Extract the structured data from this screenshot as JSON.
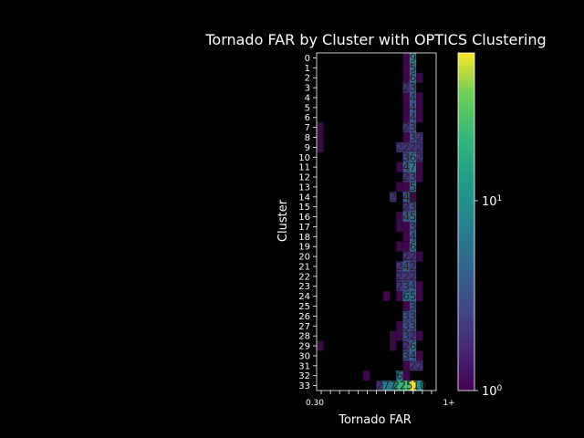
{
  "chart_data": {
    "type": "heatmap",
    "title": "Tornado FAR by Cluster with OPTICS Clustering",
    "xlabel": "Tornado FAR",
    "ylabel": "Cluster",
    "x_first_tick_label": "0.30",
    "x_last_tick_label": "1+",
    "x_tick_count": 13,
    "y_categories": [
      "0",
      "1",
      "2",
      "3",
      "4",
      "5",
      "6",
      "7",
      "8",
      "9",
      "10",
      "11",
      "12",
      "13",
      "14",
      "15",
      "16",
      "17",
      "18",
      "19",
      "20",
      "21",
      "22",
      "23",
      "24",
      "25",
      "26",
      "27",
      "28",
      "29",
      "30",
      "31",
      "32",
      "33"
    ],
    "colorbar": {
      "scale": "log",
      "colormap": "viridis",
      "min": 1,
      "max": 60,
      "tick_labels": [
        "10^0",
        "10^1"
      ],
      "tick_values": [
        1,
        10
      ]
    },
    "column_count": 18,
    "cells": [
      {
        "row": 0,
        "col": 13,
        "v": 1
      },
      {
        "row": 0,
        "col": 14,
        "v": 9
      },
      {
        "row": 1,
        "col": 13,
        "v": 1
      },
      {
        "row": 1,
        "col": 14,
        "v": 5
      },
      {
        "row": 2,
        "col": 13,
        "v": 1
      },
      {
        "row": 2,
        "col": 14,
        "v": 6
      },
      {
        "row": 2,
        "col": 15,
        "v": 1
      },
      {
        "row": 3,
        "col": 13,
        "v": 2
      },
      {
        "row": 3,
        "col": 14,
        "v": 3
      },
      {
        "row": 4,
        "col": 13,
        "v": 1
      },
      {
        "row": 4,
        "col": 14,
        "v": 4
      },
      {
        "row": 4,
        "col": 15,
        "v": 1
      },
      {
        "row": 5,
        "col": 13,
        "v": 1
      },
      {
        "row": 5,
        "col": 14,
        "v": 4
      },
      {
        "row": 5,
        "col": 15,
        "v": 1
      },
      {
        "row": 6,
        "col": 13,
        "v": 1
      },
      {
        "row": 6,
        "col": 14,
        "v": 4
      },
      {
        "row": 6,
        "col": 15,
        "v": 1
      },
      {
        "row": 7,
        "col": 0,
        "v": 1
      },
      {
        "row": 7,
        "col": 13,
        "v": 2
      },
      {
        "row": 7,
        "col": 14,
        "v": 3
      },
      {
        "row": 8,
        "col": 0,
        "v": 1
      },
      {
        "row": 8,
        "col": 13,
        "v": 1
      },
      {
        "row": 8,
        "col": 14,
        "v": 3
      },
      {
        "row": 8,
        "col": 15,
        "v": 2
      },
      {
        "row": 9,
        "col": 0,
        "v": 1
      },
      {
        "row": 9,
        "col": 12,
        "v": 2
      },
      {
        "row": 9,
        "col": 13,
        "v": 2
      },
      {
        "row": 9,
        "col": 14,
        "v": 2
      },
      {
        "row": 9,
        "col": 15,
        "v": 2
      },
      {
        "row": 10,
        "col": 13,
        "v": 3
      },
      {
        "row": 10,
        "col": 14,
        "v": 6
      },
      {
        "row": 10,
        "col": 15,
        "v": 2
      },
      {
        "row": 11,
        "col": 12,
        "v": 1
      },
      {
        "row": 11,
        "col": 13,
        "v": 4
      },
      {
        "row": 11,
        "col": 14,
        "v": 7
      },
      {
        "row": 11,
        "col": 15,
        "v": 1
      },
      {
        "row": 12,
        "col": 13,
        "v": 2
      },
      {
        "row": 12,
        "col": 14,
        "v": 3
      },
      {
        "row": 12,
        "col": 15,
        "v": 1
      },
      {
        "row": 13,
        "col": 12,
        "v": 1
      },
      {
        "row": 13,
        "col": 13,
        "v": 1
      },
      {
        "row": 13,
        "col": 14,
        "v": 5
      },
      {
        "row": 14,
        "col": 11,
        "v": 2
      },
      {
        "row": 14,
        "col": 13,
        "v": 4
      },
      {
        "row": 14,
        "col": 14,
        "v": 1
      },
      {
        "row": 15,
        "col": 13,
        "v": 2
      },
      {
        "row": 15,
        "col": 14,
        "v": 3
      },
      {
        "row": 16,
        "col": 12,
        "v": 1
      },
      {
        "row": 16,
        "col": 13,
        "v": 4
      },
      {
        "row": 16,
        "col": 14,
        "v": 5
      },
      {
        "row": 17,
        "col": 12,
        "v": 1
      },
      {
        "row": 17,
        "col": 13,
        "v": 1
      },
      {
        "row": 17,
        "col": 14,
        "v": 3
      },
      {
        "row": 18,
        "col": 13,
        "v": 1
      },
      {
        "row": 18,
        "col": 14,
        "v": 4
      },
      {
        "row": 19,
        "col": 12,
        "v": 1
      },
      {
        "row": 19,
        "col": 13,
        "v": 1
      },
      {
        "row": 19,
        "col": 14,
        "v": 6
      },
      {
        "row": 20,
        "col": 13,
        "v": 2
      },
      {
        "row": 20,
        "col": 14,
        "v": 2
      },
      {
        "row": 20,
        "col": 15,
        "v": 1
      },
      {
        "row": 21,
        "col": 12,
        "v": 2
      },
      {
        "row": 21,
        "col": 13,
        "v": 4
      },
      {
        "row": 21,
        "col": 14,
        "v": 2
      },
      {
        "row": 22,
        "col": 12,
        "v": 2
      },
      {
        "row": 22,
        "col": 13,
        "v": 2
      },
      {
        "row": 22,
        "col": 14,
        "v": 2
      },
      {
        "row": 23,
        "col": 12,
        "v": 2
      },
      {
        "row": 23,
        "col": 13,
        "v": 3
      },
      {
        "row": 23,
        "col": 14,
        "v": 4
      },
      {
        "row": 23,
        "col": 15,
        "v": 1
      },
      {
        "row": 24,
        "col": 10,
        "v": 1
      },
      {
        "row": 24,
        "col": 12,
        "v": 1
      },
      {
        "row": 24,
        "col": 13,
        "v": 6
      },
      {
        "row": 24,
        "col": 14,
        "v": 5
      },
      {
        "row": 24,
        "col": 15,
        "v": 1
      },
      {
        "row": 25,
        "col": 13,
        "v": 1
      },
      {
        "row": 25,
        "col": 14,
        "v": 3
      },
      {
        "row": 26,
        "col": 13,
        "v": 3
      },
      {
        "row": 26,
        "col": 14,
        "v": 3
      },
      {
        "row": 27,
        "col": 12,
        "v": 1
      },
      {
        "row": 27,
        "col": 13,
        "v": 3
      },
      {
        "row": 27,
        "col": 14,
        "v": 3
      },
      {
        "row": 28,
        "col": 11,
        "v": 1
      },
      {
        "row": 28,
        "col": 12,
        "v": 1
      },
      {
        "row": 28,
        "col": 13,
        "v": 3
      },
      {
        "row": 28,
        "col": 14,
        "v": 2
      },
      {
        "row": 28,
        "col": 15,
        "v": 1
      },
      {
        "row": 29,
        "col": 0,
        "v": 1
      },
      {
        "row": 29,
        "col": 11,
        "v": 1
      },
      {
        "row": 29,
        "col": 13,
        "v": 2
      },
      {
        "row": 29,
        "col": 14,
        "v": 6
      },
      {
        "row": 30,
        "col": 13,
        "v": 3
      },
      {
        "row": 30,
        "col": 14,
        "v": 4
      },
      {
        "row": 30,
        "col": 15,
        "v": 1
      },
      {
        "row": 31,
        "col": 13,
        "v": 1
      },
      {
        "row": 31,
        "col": 14,
        "v": 2
      },
      {
        "row": 31,
        "col": 15,
        "v": 2
      },
      {
        "row": 32,
        "col": 7,
        "v": 1
      },
      {
        "row": 32,
        "col": 12,
        "v": 6
      },
      {
        "row": 32,
        "col": 13,
        "v": 1
      },
      {
        "row": 33,
        "col": 9,
        "v": 2
      },
      {
        "row": 33,
        "col": 10,
        "v": 7
      },
      {
        "row": 33,
        "col": 11,
        "v": 7
      },
      {
        "row": 33,
        "col": 12,
        "v": 21
      },
      {
        "row": 33,
        "col": 13,
        "v": 25
      },
      {
        "row": 33,
        "col": 14,
        "v": 57
      },
      {
        "row": 33,
        "col": 15,
        "v": 10
      }
    ]
  }
}
